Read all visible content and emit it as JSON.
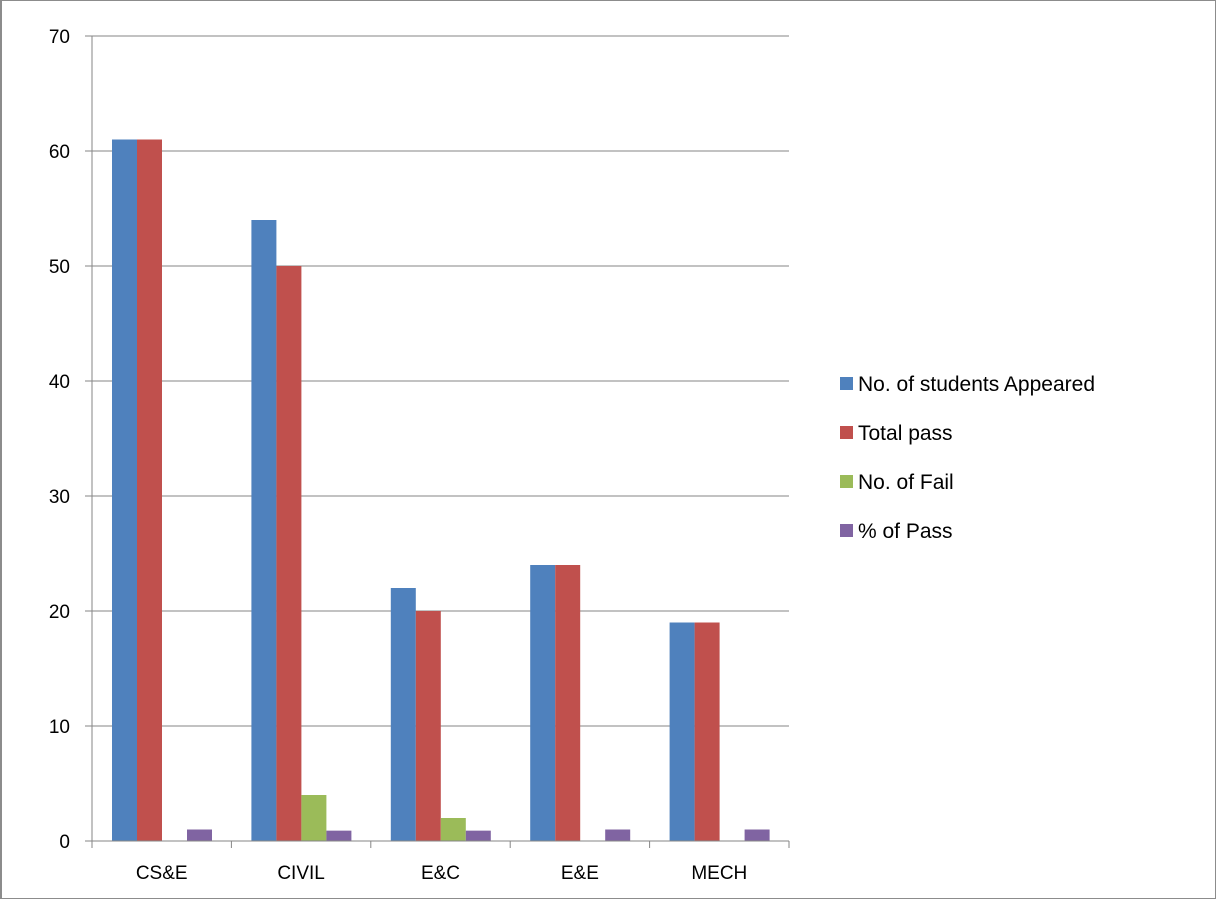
{
  "chart_data": {
    "type": "bar",
    "categories": [
      "CS&E",
      "CIVIL",
      "E&C",
      "E&E",
      "MECH"
    ],
    "series": [
      {
        "name": "No. of students Appeared",
        "values": [
          61,
          54,
          22,
          24,
          19
        ],
        "color": "#4f81bd"
      },
      {
        "name": "Total pass",
        "values": [
          61,
          50,
          20,
          24,
          19
        ],
        "color": "#c0504d"
      },
      {
        "name": "No. of Fail",
        "values": [
          0,
          4,
          2,
          0,
          0
        ],
        "color": "#9bbb59"
      },
      {
        "name": "% of Pass",
        "values": [
          1,
          0.9,
          0.9,
          1,
          1
        ],
        "color": "#8064a2"
      }
    ],
    "ylim": [
      0,
      70
    ],
    "yticks": [
      0,
      10,
      20,
      30,
      40,
      50,
      60,
      70
    ],
    "grid": true,
    "legend": "right"
  }
}
